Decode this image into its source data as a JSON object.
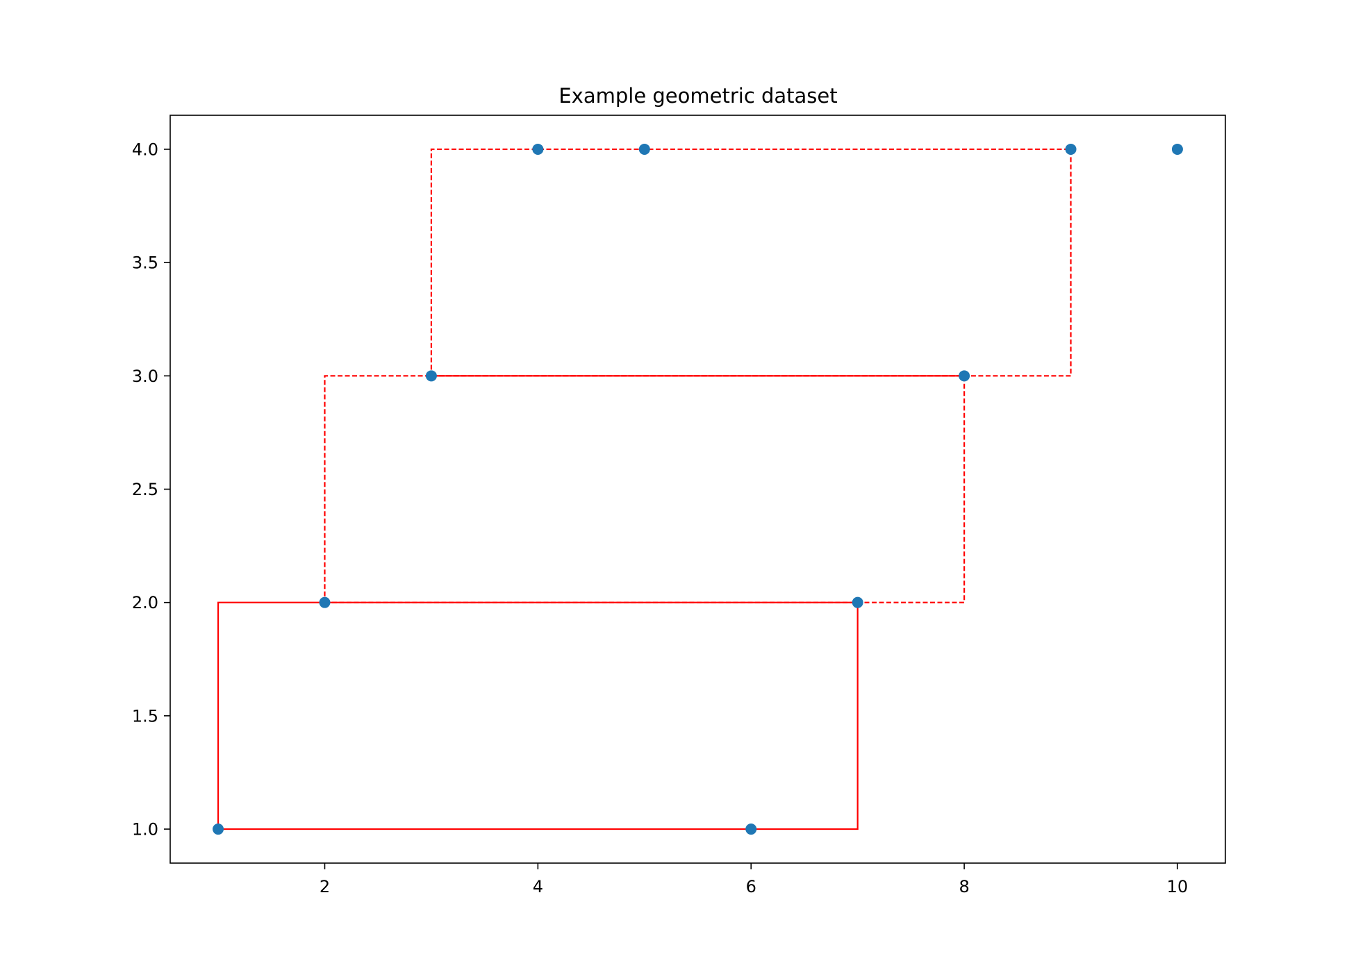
{
  "chart_data": {
    "type": "scatter",
    "title": "Example geometric dataset",
    "xlabel": "",
    "ylabel": "",
    "xlim": [
      0.55,
      10.45
    ],
    "ylim": [
      0.85,
      4.15
    ],
    "x_ticks": [
      2,
      4,
      6,
      8,
      10
    ],
    "x_tick_labels": [
      "2",
      "4",
      "6",
      "8",
      "10"
    ],
    "y_ticks": [
      1.0,
      1.5,
      2.0,
      2.5,
      3.0,
      3.5,
      4.0
    ],
    "y_tick_labels": [
      "1.0",
      "1.5",
      "2.0",
      "2.5",
      "3.0",
      "3.5",
      "4.0"
    ],
    "grid": false,
    "legend": "none",
    "points": {
      "color": "#1f77b4",
      "x": [
        1,
        2,
        3,
        4,
        5,
        6,
        7,
        8,
        9,
        10
      ],
      "y": [
        1,
        2,
        3,
        4,
        4,
        1,
        2,
        3,
        4,
        4
      ]
    },
    "rectangles": [
      {
        "x": [
          1,
          7,
          7,
          1,
          1
        ],
        "y": [
          1,
          1,
          2,
          2,
          1
        ],
        "style": "solid",
        "color": "#ff0000"
      },
      {
        "x": [
          2,
          8,
          8,
          2,
          2
        ],
        "y": [
          2,
          2,
          3,
          3,
          2
        ],
        "style": "dashed",
        "color": "#ff0000"
      },
      {
        "x": [
          3,
          8,
          8,
          3,
          3
        ],
        "y": [
          3,
          3,
          3,
          3,
          3
        ],
        "style": "solid",
        "color": "#ff0000"
      },
      {
        "x": [
          3,
          9,
          9,
          3,
          3
        ],
        "y": [
          3,
          3,
          4,
          4,
          3
        ],
        "style": "dashed",
        "color": "#ff0000"
      }
    ]
  }
}
